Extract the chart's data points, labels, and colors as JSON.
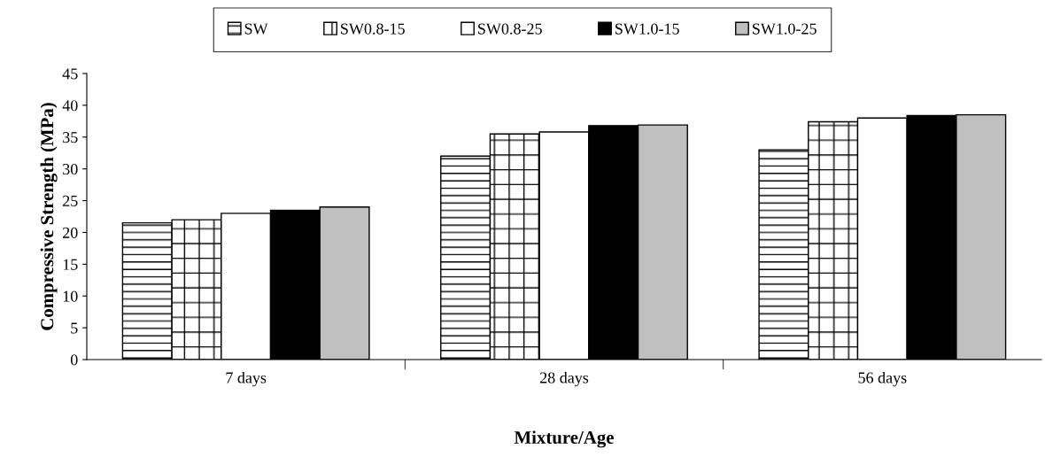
{
  "chart_data": {
    "type": "bar",
    "xlabel": "Mixture/Age",
    "ylabel": "Compressive Strength (MPa)",
    "categories": [
      "7 days",
      "28 days",
      "56 days"
    ],
    "series": [
      {
        "name": "SW",
        "color": "#000000",
        "values": [
          21.5,
          32,
          33
        ]
      },
      {
        "name": "SW0.8-15",
        "color": "#000000",
        "values": [
          22,
          35.5,
          37.4
        ]
      },
      {
        "name": "SW0.8-25",
        "color": "#ffffff",
        "values": [
          23,
          35.8,
          38
        ]
      },
      {
        "name": "SW1.0-15",
        "color": "#000000",
        "values": [
          23.5,
          36.8,
          38.4
        ]
      },
      {
        "name": "SW1.0-25",
        "color": "#c0c0c0",
        "values": [
          24,
          36.9,
          38.5
        ]
      }
    ],
    "ylim": [
      0,
      45
    ],
    "yticks": [
      0,
      5,
      10,
      15,
      20,
      25,
      30,
      35,
      40,
      45
    ],
    "legend": "top",
    "grid": false
  }
}
